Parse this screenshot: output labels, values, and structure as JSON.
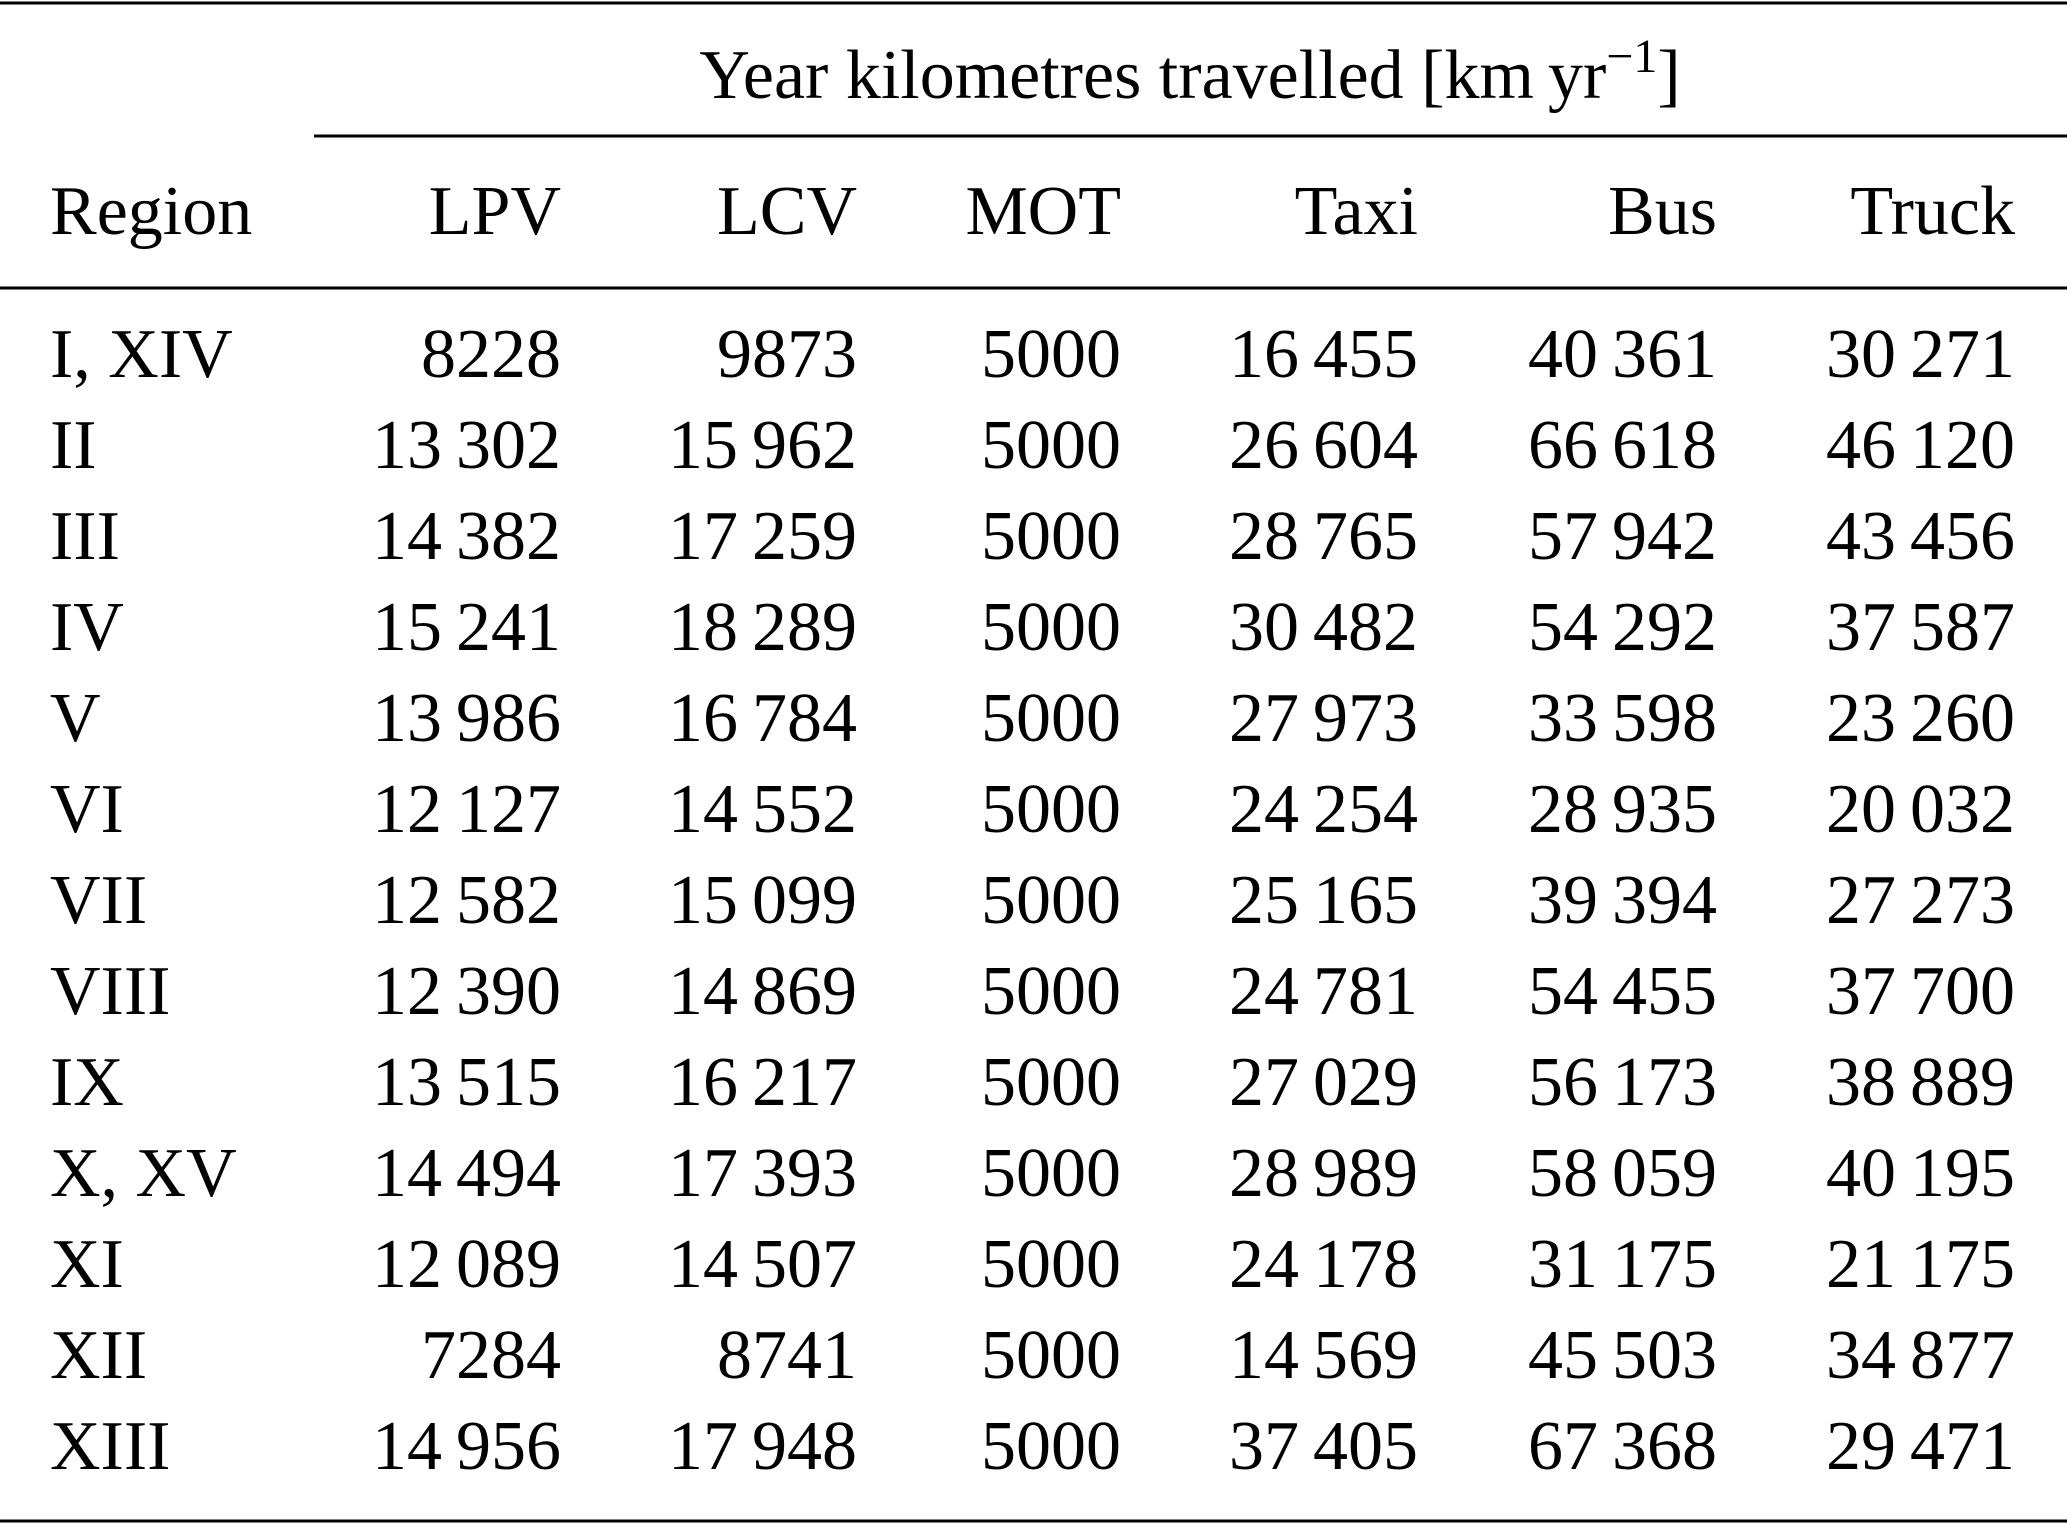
{
  "table": {
    "group_title": {
      "prefix": "Year kilometres travelled [km yr",
      "exponent": "−1",
      "suffix": "]"
    },
    "columns": [
      "Region",
      "LPV",
      "LCV",
      "MOT",
      "Taxi",
      "Bus",
      "Truck"
    ],
    "rows": [
      [
        "I, XIV",
        "8228",
        "9873",
        "5000",
        "16 455",
        "40 361",
        "30 271"
      ],
      [
        "II",
        "13 302",
        "15 962",
        "5000",
        "26 604",
        "66 618",
        "46 120"
      ],
      [
        "III",
        "14 382",
        "17 259",
        "5000",
        "28 765",
        "57 942",
        "43 456"
      ],
      [
        "IV",
        "15 241",
        "18 289",
        "5000",
        "30 482",
        "54 292",
        "37 587"
      ],
      [
        "V",
        "13 986",
        "16 784",
        "5000",
        "27 973",
        "33 598",
        "23 260"
      ],
      [
        "VI",
        "12 127",
        "14 552",
        "5000",
        "24 254",
        "28 935",
        "20 032"
      ],
      [
        "VII",
        "12 582",
        "15 099",
        "5000",
        "25 165",
        "39 394",
        "27 273"
      ],
      [
        "VIII",
        "12 390",
        "14 869",
        "5000",
        "24 781",
        "54 455",
        "37 700"
      ],
      [
        "IX",
        "13 515",
        "16 217",
        "5000",
        "27 029",
        "56 173",
        "38 889"
      ],
      [
        "X, XV",
        "14 494",
        "17 393",
        "5000",
        "28 989",
        "58 059",
        "40 195"
      ],
      [
        "XI",
        "12 089",
        "14 507",
        "5000",
        "24 178",
        "31 175",
        "21 175"
      ],
      [
        "XII",
        "7284",
        "8741",
        "5000",
        "14 569",
        "45 503",
        "34 877"
      ],
      [
        "XIII",
        "14 956",
        "17 948",
        "5000",
        "37 405",
        "67 368",
        "29 471"
      ]
    ]
  }
}
